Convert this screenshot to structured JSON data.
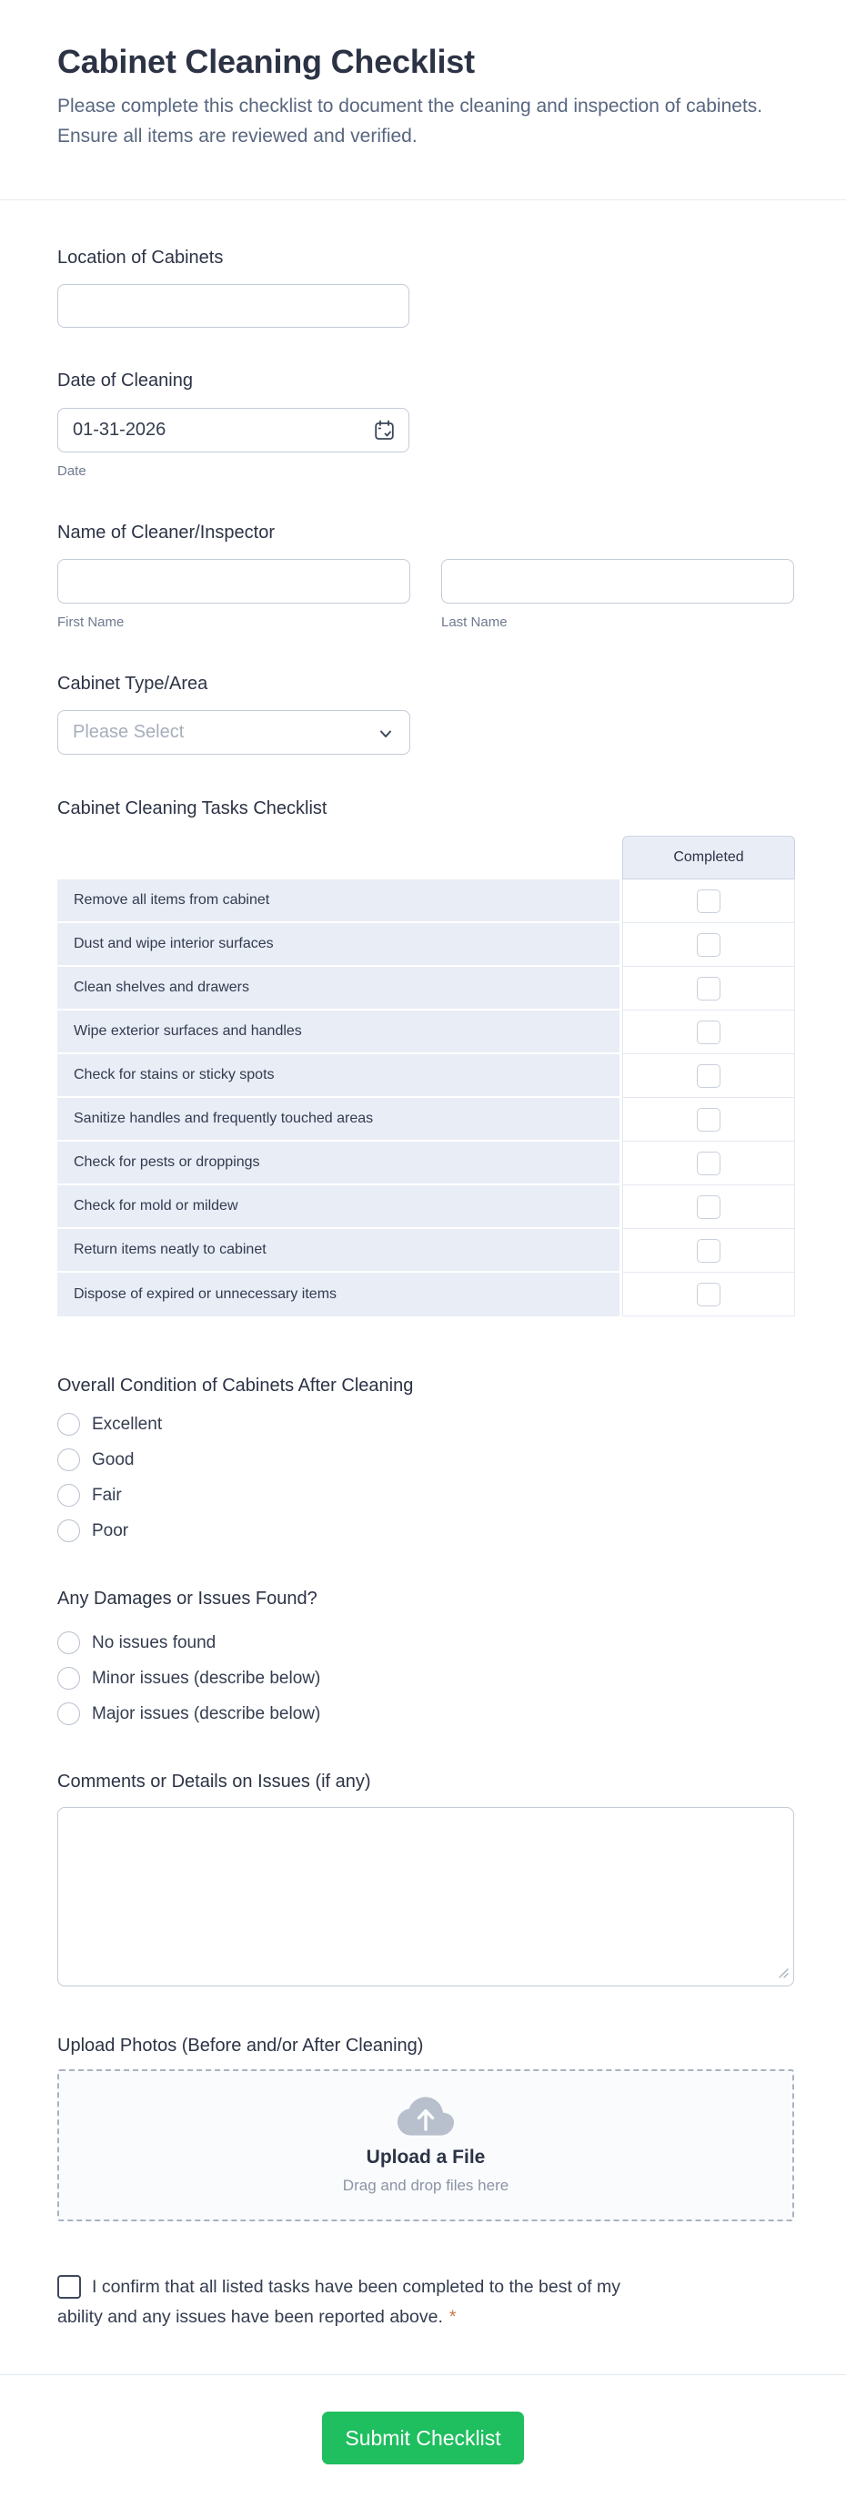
{
  "form": {
    "title": "Cabinet Cleaning Checklist",
    "subtitle": "Please complete this checklist to document the cleaning and inspection of cabinets.\nEnsure all items are reviewed and verified.",
    "fields": {
      "location": {
        "label": "Location of Cabinets",
        "value": ""
      },
      "date": {
        "label": "Date of Cleaning",
        "value": "01-31-2026",
        "sublabel": "Date"
      },
      "name": {
        "label": "Name of Cleaner/Inspector",
        "first_sublabel": "First Name",
        "last_sublabel": "Last Name",
        "first_value": "",
        "last_value": ""
      },
      "cabinet_type": {
        "label": "Cabinet Type/Area",
        "placeholder": "Please Select"
      },
      "tasks": {
        "label": "Cabinet Cleaning Tasks Checklist",
        "column_header": "Completed",
        "rows": [
          "Remove all items from cabinet",
          "Dust and wipe interior surfaces",
          "Clean shelves and drawers",
          "Wipe exterior surfaces and handles",
          "Check for stains or sticky spots",
          "Sanitize handles and frequently touched areas",
          "Check for pests or droppings",
          "Check for mold or mildew",
          "Return items neatly to cabinet",
          "Dispose of expired or unnecessary items"
        ],
        "checked": [
          false,
          false,
          false,
          false,
          false,
          false,
          false,
          false,
          false,
          false
        ]
      },
      "condition": {
        "label": "Overall Condition of Cabinets After Cleaning",
        "options": [
          "Excellent",
          "Good",
          "Fair",
          "Poor"
        ],
        "selected": null
      },
      "damages": {
        "label": "Any Damages or Issues Found?",
        "options": [
          "No issues found",
          "Minor issues (describe below)",
          "Major issues (describe below)"
        ],
        "selected": null
      },
      "comments": {
        "label": "Comments or Details on Issues (if any)",
        "value": ""
      },
      "upload": {
        "label": "Upload Photos (Before and/or After Cleaning)",
        "button_text": "Upload a File",
        "hint": "Drag and drop files here"
      },
      "confirm": {
        "text": "I confirm that all listed tasks have been completed to the best of my\nability and any issues have been reported above.",
        "required_marker": "*",
        "checked": false
      }
    },
    "submit_label": "Submit Checklist",
    "colors": {
      "submit_green": "#1fbe5f",
      "required_asterisk": "#c9764a",
      "table_cell_bg": "#e9edf6",
      "heading_text": "#2c3345",
      "subtitle_text": "#58667f"
    }
  }
}
